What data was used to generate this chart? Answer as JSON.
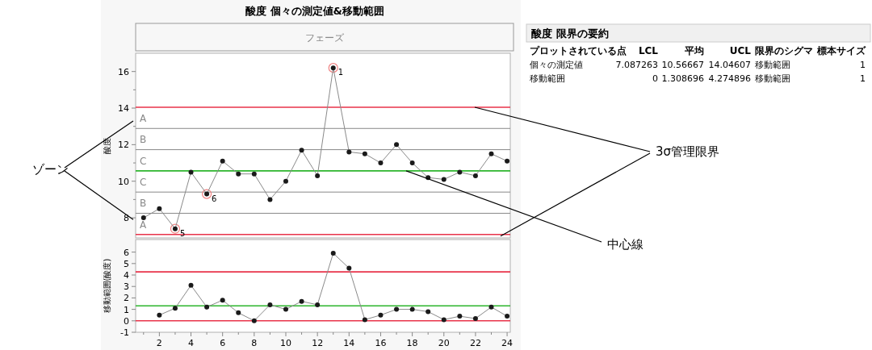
{
  "chart_data": [
    {
      "type": "line",
      "title": "酸度  個々の測定値&移動範囲",
      "subtitle": "フェーズ",
      "ylabel": "酸度",
      "x": [
        1,
        2,
        3,
        4,
        5,
        6,
        7,
        8,
        9,
        10,
        11,
        12,
        13,
        14,
        15,
        16,
        17,
        18,
        19,
        20,
        21,
        22,
        23,
        24
      ],
      "series": [
        {
          "type": "scatter",
          "color": "#f08080",
          "x": [
            3,
            5,
            13
          ],
          "values": [
            7.4,
            9.3,
            16.2
          ]
        },
        {
          "color": "#1a1a1a",
          "values": [
            8.0,
            8.5,
            7.4,
            10.5,
            9.3,
            11.1,
            10.4,
            10.4,
            9.0,
            10.0,
            11.7,
            10.3,
            16.2,
            11.6,
            11.5,
            11.0,
            12.0,
            11.0,
            10.2,
            10.1,
            10.5,
            10.3,
            11.5,
            11.1
          ]
        }
      ],
      "marker": "circle",
      "xlim": [
        0.5,
        24.2
      ],
      "ylim": [
        6.9,
        17
      ],
      "yticks": [
        8,
        {
          "value": 9,
          "label": null
        },
        10,
        {
          "value": 11,
          "label": null
        },
        12,
        {
          "value": 13,
          "label": null
        },
        14,
        {
          "value": 15,
          "label": null
        },
        16
      ],
      "tick_labels": "y",
      "grid": false,
      "ref_lines": [
        {
          "axis": "y",
          "value": 14.04607,
          "color": "#e8334a"
        },
        {
          "axis": "y",
          "value": 10.56667,
          "color": "#2db52d"
        },
        {
          "axis": "y",
          "value": 7.087263,
          "color": "#e8334a"
        },
        {
          "axis": "y",
          "value": 12.886,
          "color": "#888888",
          "line_style": "solid"
        },
        {
          "axis": "y",
          "value": 11.726,
          "color": "#888888",
          "line_style": "solid"
        },
        {
          "axis": "y",
          "value": 9.407,
          "color": "#888888",
          "line_style": "solid"
        },
        {
          "axis": "y",
          "value": 8.247,
          "color": "#888888",
          "line_style": "solid"
        }
      ],
      "annotations": [
        {
          "text": "1",
          "x": 13,
          "y": 16.2
        },
        {
          "text": "5",
          "x": 3,
          "y": 7.4
        },
        {
          "text": "6",
          "x": 5,
          "y": 9.3
        },
        "A",
        "B",
        "C",
        "C",
        "B",
        "A",
        "ゾーン",
        "3σ管理限界",
        "中心線"
      ]
    },
    {
      "type": "line",
      "ylabel": "移動範囲(酸度)",
      "x": [
        2,
        3,
        4,
        5,
        6,
        7,
        8,
        9,
        10,
        11,
        12,
        13,
        14,
        15,
        16,
        17,
        18,
        19,
        20,
        21,
        22,
        23,
        24
      ],
      "series": [
        {
          "color": "#1a1a1a",
          "values": [
            0.5,
            1.1,
            3.1,
            1.2,
            1.8,
            0.7,
            0,
            1.4,
            1.0,
            1.7,
            1.4,
            5.9,
            4.6,
            0.1,
            0.5,
            1.0,
            1.0,
            0.8,
            0.1,
            0.4,
            0.2,
            1.2,
            0.4
          ]
        }
      ],
      "marker": "circle",
      "xlim": [
        0.5,
        24.2
      ],
      "ylim": [
        -1,
        7.1
      ],
      "xticks": [
        {
          "value": 1,
          "label": null
        },
        2,
        {
          "value": 3,
          "label": null
        },
        4,
        {
          "value": 5,
          "label": null
        },
        6,
        {
          "value": 7,
          "label": null
        },
        8,
        {
          "value": 9,
          "label": null
        },
        10,
        {
          "value": 11,
          "label": null
        },
        12,
        {
          "value": 13,
          "label": null
        },
        14,
        {
          "value": 15,
          "label": null
        },
        16,
        {
          "value": 17,
          "label": null
        },
        18,
        {
          "value": 19,
          "label": null
        },
        20,
        {
          "value": 21,
          "label": null
        },
        22,
        {
          "value": 23,
          "label": null
        },
        24
      ],
      "yticks": [
        -1,
        0,
        1,
        2,
        3,
        4,
        5,
        6
      ],
      "grid": false,
      "ref_lines": [
        {
          "axis": "y",
          "value": 4.274896,
          "color": "#e8334a"
        },
        {
          "axis": "y",
          "value": 1.308696,
          "color": "#2db52d"
        },
        {
          "axis": "y",
          "value": 0,
          "color": "#e8334a"
        }
      ]
    },
    {
      "type": "other",
      "title": "酸度 限界の要約",
      "categories": [
        "プロットされている点",
        "LCL",
        "平均",
        "UCL",
        "限界のシグマ",
        "標本サイズ"
      ],
      "cell_labels": [
        [
          "個々の測定値",
          "7.087263",
          "10.56667",
          "14.04607",
          "移動範囲",
          "1"
        ],
        [
          "移動範囲",
          "0",
          "1.308696",
          "4.274896",
          "移動範囲",
          "1"
        ]
      ]
    }
  ]
}
